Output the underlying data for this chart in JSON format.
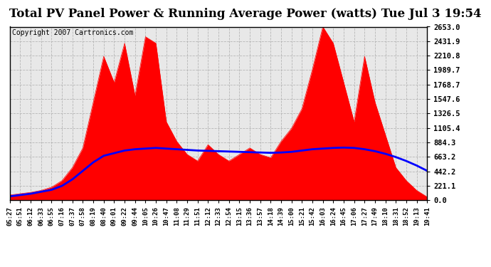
{
  "title": "Total PV Panel Power & Running Average Power (watts) Tue Jul 3 19:54",
  "copyright": "Copyright 2007 Cartronics.com",
  "ylabel_right": [
    "2653.0",
    "2431.9",
    "2210.8",
    "1989.7",
    "1768.7",
    "1547.6",
    "1326.5",
    "1105.4",
    "884.3",
    "663.2",
    "442.2",
    "221.1",
    "0.0"
  ],
  "ymax": 2653.0,
  "ymin": 0.0,
  "y_ticks": [
    2653.0,
    2431.9,
    2210.8,
    1989.7,
    1768.7,
    1547.6,
    1326.5,
    1105.4,
    884.3,
    663.2,
    442.2,
    221.1,
    0.0
  ],
  "x_labels": [
    "05:27",
    "05:51",
    "06:12",
    "06:33",
    "06:55",
    "07:16",
    "07:37",
    "07:58",
    "08:19",
    "08:40",
    "09:01",
    "09:22",
    "09:44",
    "10:05",
    "10:26",
    "10:47",
    "11:08",
    "11:29",
    "11:51",
    "12:12",
    "12:33",
    "12:54",
    "13:15",
    "13:36",
    "13:57",
    "14:18",
    "14:39",
    "15:00",
    "15:21",
    "15:42",
    "16:03",
    "16:24",
    "16:45",
    "17:06",
    "17:27",
    "17:49",
    "18:10",
    "18:31",
    "18:52",
    "19:13",
    "19:41"
  ],
  "pv_power": [
    80,
    100,
    120,
    150,
    200,
    300,
    500,
    800,
    1500,
    2200,
    1800,
    2400,
    1600,
    2500,
    2400,
    1200,
    900,
    700,
    600,
    850,
    700,
    600,
    700,
    800,
    700,
    650,
    900,
    1100,
    1400,
    2000,
    2653,
    2400,
    1800,
    1200,
    2200,
    1500,
    1000,
    500,
    300,
    150,
    50
  ],
  "avg_power": [
    60,
    80,
    100,
    130,
    160,
    220,
    320,
    450,
    580,
    680,
    720,
    760,
    780,
    790,
    800,
    790,
    780,
    770,
    760,
    755,
    750,
    745,
    740,
    735,
    730,
    725,
    730,
    740,
    760,
    780,
    790,
    800,
    805,
    800,
    780,
    750,
    710,
    660,
    600,
    530,
    450
  ],
  "background_color": "#ffffff",
  "plot_bg_color": "#e8e8e8",
  "grid_color": "#aaaaaa",
  "fill_color": "#ff0000",
  "line_color": "#0000ff",
  "title_fontsize": 12,
  "copyright_fontsize": 7
}
